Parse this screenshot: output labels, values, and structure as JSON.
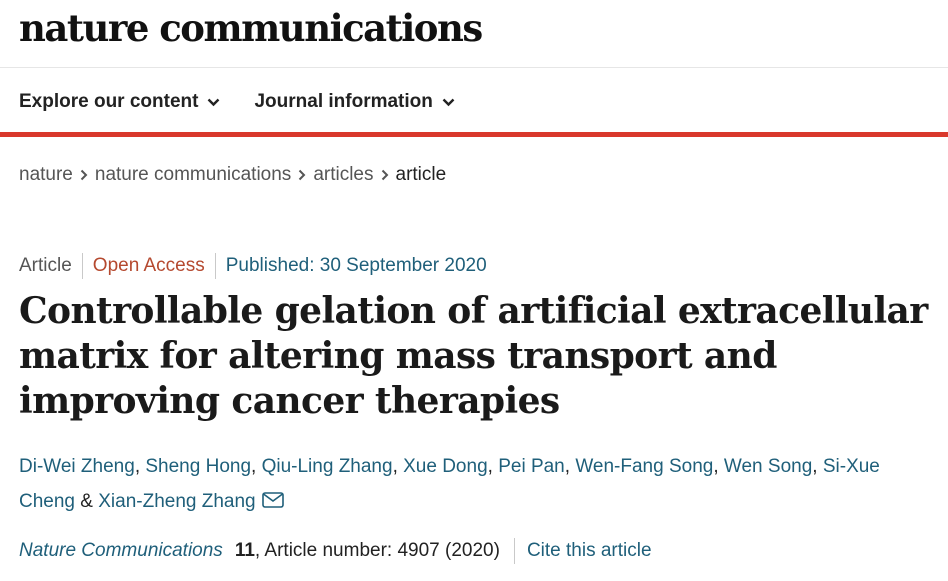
{
  "site": {
    "logo": "nature communications"
  },
  "nav": {
    "items": [
      {
        "label": "Explore our content"
      },
      {
        "label": "Journal information"
      }
    ]
  },
  "breadcrumb": {
    "items": [
      "nature",
      "nature communications",
      "articles"
    ],
    "current": "article"
  },
  "article": {
    "type": "Article",
    "access": "Open Access",
    "published": "Published: 30 September 2020",
    "title": "Controllable gelation of artificial extracellular matrix for altering mass transport and improving cancer therapies",
    "authors": [
      "Di-Wei Zheng",
      "Sheng Hong",
      "Qiu-Ling Zhang",
      "Xue Dong",
      "Pei Pan",
      "Wen-Fang Song",
      "Wen Song",
      "Si-Xue Cheng"
    ],
    "author_last": "Xian-Zheng Zhang",
    "author_separator": ", ",
    "author_and": " & ",
    "citation": {
      "journal": "Nature Communications",
      "volume": "11",
      "detail": ", Article number: 4907 (2020)",
      "cite_label": "Cite this article"
    }
  },
  "icons": {
    "nav_chevron": "chevron-down-icon",
    "breadcrumb_separator": "chevron-right-icon",
    "email": "mail-icon"
  },
  "colors": {
    "accent_red": "#d9382c",
    "link_blue": "#1f5f7a",
    "open_access": "#b5492f"
  }
}
